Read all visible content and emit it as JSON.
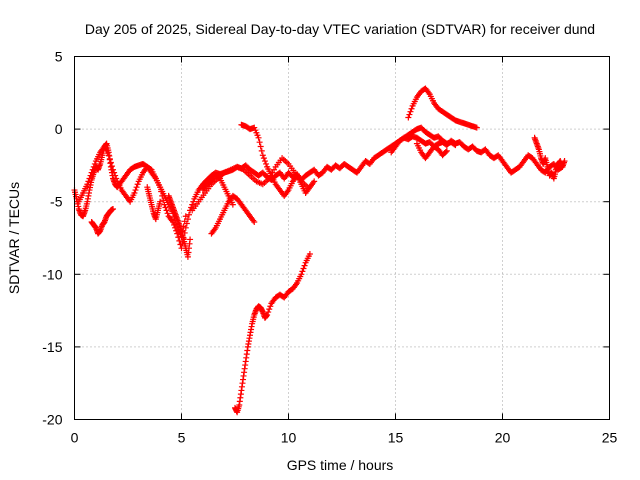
{
  "chart_data": {
    "type": "scatter",
    "title": "Day 205 of 2025, Sidereal Day-to-day VTEC variation (SDTVAR) for receiver dund",
    "xlabel": "GPS time / hours",
    "ylabel": "SDTVAR / TECUs",
    "xlim": [
      0,
      25
    ],
    "ylim": [
      -20,
      5
    ],
    "xticks": [
      0,
      5,
      10,
      15,
      20,
      25
    ],
    "xtick_labels": [
      "0",
      "5",
      "10",
      "15",
      "20",
      "25"
    ],
    "yticks": [
      5,
      0,
      -5,
      -10,
      -15,
      -20
    ],
    "ytick_labels": [
      "5",
      "0",
      "-5",
      "-10",
      "-15",
      "-20"
    ],
    "grid": true,
    "marker": "+",
    "series": [
      {
        "name": "SDTVAR",
        "color": "#ff0000",
        "segments": [
          {
            "x": [
              0.0,
              0.1,
              0.2,
              0.3,
              0.4,
              0.5,
              0.6,
              0.7,
              0.8,
              0.9,
              1.0,
              1.1,
              1.2,
              1.3,
              1.4,
              1.5,
              1.6,
              1.7,
              1.8,
              1.9,
              2.0,
              2.2,
              2.4,
              2.6,
              2.8,
              3.0,
              3.2,
              3.4,
              3.6,
              3.8,
              4.0,
              4.2,
              4.4,
              4.6,
              4.8,
              5.0,
              5.2,
              5.4,
              5.6,
              5.8,
              6.0,
              6.2,
              6.4,
              6.6,
              6.8,
              7.0,
              7.2,
              7.4,
              7.6,
              7.8,
              8.0,
              8.2,
              8.4,
              8.6,
              8.8,
              9.0,
              9.2,
              9.4,
              9.6,
              9.8,
              10.0,
              10.2,
              10.4,
              10.6,
              10.8,
              11.0,
              11.2,
              11.4,
              11.6,
              11.8,
              12.0,
              12.2,
              12.4,
              12.6,
              12.8,
              13.0,
              13.2,
              13.4,
              13.6,
              13.8,
              14.0,
              14.2,
              14.4,
              14.6,
              14.8,
              15.0,
              15.2,
              15.4,
              15.6,
              15.8,
              16.0,
              16.2,
              16.4,
              16.6,
              16.8,
              17.0,
              17.2,
              17.4,
              17.6,
              17.8,
              18.0,
              18.2,
              18.4,
              18.6,
              18.8,
              19.0,
              19.2,
              19.4,
              19.6,
              19.8,
              20.0,
              20.2,
              20.4,
              20.6,
              20.8,
              21.0,
              21.2,
              21.4,
              21.6,
              21.8,
              22.0,
              22.2,
              22.4,
              22.6,
              22.8
            ],
            "y": [
              -4.2,
              -4.8,
              -5.5,
              -5.9,
              -6.0,
              -5.6,
              -5.0,
              -4.2,
              -3.5,
              -3.0,
              -2.6,
              -2.8,
              -2.4,
              -1.8,
              -1.2,
              -1.0,
              -1.6,
              -2.6,
              -3.4,
              -3.8,
              -4.0,
              -3.6,
              -3.2,
              -2.8,
              -2.6,
              -2.5,
              -2.4,
              -2.6,
              -3.0,
              -3.4,
              -4.0,
              -5.2,
              -6.0,
              -6.4,
              -7.2,
              -8.2,
              -6.8,
              -5.6,
              -4.8,
              -4.2,
              -3.8,
              -3.5,
              -3.2,
              -3.0,
              -3.1,
              -3.0,
              -2.9,
              -2.8,
              -2.6,
              -2.7,
              -2.5,
              -2.8,
              -3.0,
              -3.2,
              -3.0,
              -3.3,
              -3.5,
              -3.2,
              -3.0,
              -3.4,
              -3.0,
              -3.3,
              -3.1,
              -3.5,
              -3.2,
              -3.0,
              -2.8,
              -3.2,
              -3.0,
              -2.6,
              -2.8,
              -2.5,
              -2.7,
              -2.4,
              -2.6,
              -2.8,
              -3.0,
              -2.6,
              -2.2,
              -2.4,
              -2.0,
              -1.8,
              -1.6,
              -1.4,
              -1.2,
              -1.0,
              -0.8,
              -0.6,
              -0.7,
              -0.5,
              -0.6,
              -0.8,
              -1.0,
              -0.9,
              -1.2,
              -1.0,
              -0.9,
              -1.1,
              -0.8,
              -1.0,
              -0.9,
              -1.2,
              -1.4,
              -1.2,
              -1.5,
              -1.6,
              -1.4,
              -1.8,
              -2.0,
              -1.8,
              -2.2,
              -2.6,
              -3.0,
              -2.8,
              -2.6,
              -2.2,
              -1.8,
              -2.0,
              -2.4,
              -2.8,
              -3.0,
              -2.6,
              -2.4,
              -2.8,
              -2.6
            ]
          },
          {
            "x": [
              0.2,
              0.4,
              0.6,
              0.8,
              1.0,
              1.2,
              1.4,
              1.6,
              1.8,
              2.0,
              2.2,
              2.4,
              2.6,
              2.8,
              3.0,
              3.2,
              3.4,
              3.6,
              3.8,
              4.0,
              4.2,
              4.4,
              4.6,
              4.8,
              5.0,
              5.2
            ],
            "y": [
              -5.0,
              -4.4,
              -3.8,
              -3.0,
              -2.2,
              -1.6,
              -1.2,
              -1.8,
              -2.8,
              -3.6,
              -4.2,
              -4.6,
              -5.0,
              -4.4,
              -3.6,
              -3.0,
              -2.6,
              -2.8,
              -3.4,
              -4.0,
              -4.6,
              -5.2,
              -5.8,
              -6.8,
              -7.4,
              -6.0
            ]
          },
          {
            "x": [
              0.8,
              0.9,
              1.0,
              1.1,
              1.2,
              1.3,
              1.4,
              1.5,
              1.6,
              1.7,
              1.8
            ],
            "y": [
              -6.4,
              -6.6,
              -6.8,
              -7.2,
              -7.0,
              -6.6,
              -6.4,
              -6.0,
              -5.8,
              -5.6,
              -5.5
            ]
          },
          {
            "x": [
              3.4,
              3.5,
              3.6,
              3.7,
              3.8,
              3.9,
              4.0
            ],
            "y": [
              -4.0,
              -4.6,
              -5.2,
              -5.8,
              -6.2,
              -5.6,
              -5.0
            ]
          },
          {
            "x": [
              4.4,
              4.5,
              4.6,
              4.7,
              4.8,
              4.9,
              5.0,
              5.1,
              5.2,
              5.3,
              5.4
            ],
            "y": [
              -4.6,
              -5.0,
              -5.4,
              -5.8,
              -6.2,
              -6.6,
              -7.0,
              -7.6,
              -8.2,
              -8.8,
              -7.6
            ]
          },
          {
            "x": [
              6.4,
              6.6,
              6.8,
              7.0,
              7.2,
              7.4,
              7.6,
              7.8,
              8.0,
              8.2,
              8.4
            ],
            "y": [
              -7.2,
              -6.8,
              -6.2,
              -5.6,
              -5.0,
              -4.6,
              -4.8,
              -5.2,
              -5.6,
              -6.0,
              -6.4
            ]
          },
          {
            "x": [
              6.0,
              6.2,
              6.4,
              6.6,
              6.8,
              7.0,
              7.2,
              7.4
            ],
            "y": [
              -4.2,
              -3.8,
              -3.6,
              -3.2,
              -3.4,
              -4.0,
              -4.6,
              -5.2
            ]
          },
          {
            "x": [
              7.8,
              8.0,
              8.2,
              8.4,
              8.6,
              8.8,
              9.0,
              9.2,
              9.4,
              9.6,
              9.8,
              10.0,
              10.2,
              10.4,
              10.6,
              10.8,
              11.0,
              11.2
            ],
            "y": [
              0.3,
              0.2,
              0.0,
              0.1,
              -0.6,
              -1.8,
              -2.6,
              -3.2,
              -3.8,
              -4.2,
              -4.6,
              -4.2,
              -3.6,
              -3.2,
              -3.8,
              -4.4,
              -4.0,
              -3.6
            ]
          },
          {
            "x": [
              5.5,
              5.8,
              6.1,
              6.4,
              6.7,
              7.0,
              7.3,
              7.6,
              7.9,
              8.2,
              8.5,
              8.8,
              9.1,
              9.4,
              9.7,
              10.0,
              10.3,
              10.6,
              10.9
            ],
            "y": [
              -5.6,
              -5.0,
              -4.4,
              -3.8,
              -3.4,
              -3.0,
              -2.8,
              -2.6,
              -2.8,
              -3.2,
              -3.6,
              -3.8,
              -3.4,
              -2.6,
              -2.0,
              -2.4,
              -3.0,
              -3.6,
              -4.0
            ]
          },
          {
            "x": [
              7.5,
              7.6,
              7.7,
              7.8,
              7.9,
              8.0,
              8.1,
              8.2,
              8.3,
              8.4,
              8.5,
              8.6,
              8.7,
              8.8,
              8.9,
              9.0,
              9.2,
              9.4,
              9.6,
              9.8,
              10.0,
              10.2,
              10.4,
              10.6,
              10.8,
              11.0
            ],
            "y": [
              -19.2,
              -19.5,
              -19.0,
              -18.0,
              -17.0,
              -16.0,
              -15.0,
              -14.2,
              -13.4,
              -12.8,
              -12.4,
              -12.2,
              -12.3,
              -12.6,
              -13.0,
              -12.8,
              -12.0,
              -11.6,
              -11.4,
              -11.6,
              -11.2,
              -11.0,
              -10.6,
              -10.0,
              -9.2,
              -8.6
            ]
          },
          {
            "x": [
              15.6,
              15.8,
              16.0,
              16.2,
              16.4,
              16.6,
              16.8,
              17.0,
              17.2,
              17.4,
              17.6,
              17.8,
              18.0,
              18.2,
              18.4,
              18.6,
              18.8
            ],
            "y": [
              0.8,
              1.6,
              2.2,
              2.6,
              2.8,
              2.4,
              1.8,
              1.4,
              1.2,
              1.0,
              0.8,
              0.6,
              0.5,
              0.4,
              0.3,
              0.2,
              0.1
            ]
          },
          {
            "x": [
              14.8,
              15.0,
              15.2,
              15.4,
              15.6,
              15.8,
              16.0,
              16.2,
              16.4,
              16.6,
              16.8,
              17.0,
              17.2,
              17.4,
              17.6,
              17.8
            ],
            "y": [
              -1.6,
              -1.2,
              -0.8,
              -0.6,
              -0.4,
              -0.2,
              0.0,
              0.1,
              -0.2,
              -0.4,
              -0.6,
              -0.5,
              -0.8,
              -1.0,
              -0.9,
              -1.1
            ]
          },
          {
            "x": [
              16.0,
              16.2,
              16.4,
              16.6,
              16.8,
              17.0,
              17.2,
              17.4
            ],
            "y": [
              -1.0,
              -1.6,
              -2.0,
              -1.6,
              -1.2,
              -1.4,
              -1.8,
              -1.5
            ]
          },
          {
            "x": [
              21.5,
              21.6,
              21.7,
              21.8,
              21.9,
              22.0,
              22.1,
              22.2,
              22.3,
              22.4,
              22.5,
              22.6,
              22.7,
              22.8,
              22.9
            ],
            "y": [
              -0.6,
              -1.0,
              -1.4,
              -2.0,
              -2.4,
              -2.0,
              -2.6,
              -3.2,
              -3.0,
              -3.4,
              -2.8,
              -2.4,
              -2.2,
              -2.6,
              -2.2
            ]
          }
        ]
      }
    ]
  }
}
